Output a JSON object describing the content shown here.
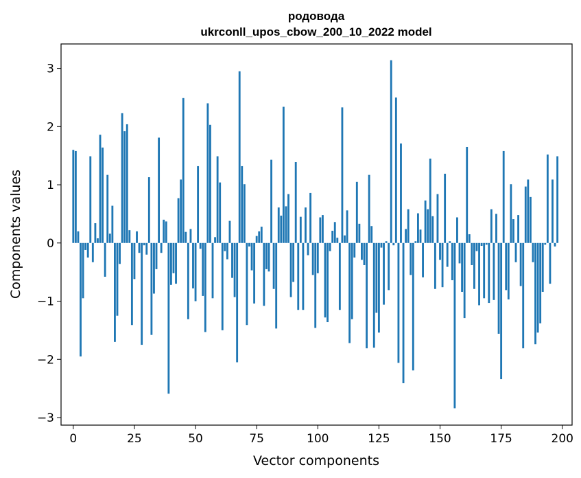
{
  "chart_data": {
    "type": "bar",
    "title_line1": "родовода",
    "title_line2": "ukrconll_upos_cbow_200_10_2022 model",
    "xlabel": "Vector components",
    "ylabel": "Components values",
    "xlim": [
      -5,
      204
    ],
    "ylim": [
      -3.13,
      3.42
    ],
    "x_ticks": [
      0,
      25,
      50,
      75,
      100,
      125,
      150,
      175,
      200
    ],
    "y_ticks": [
      -3,
      -2,
      -1,
      0,
      1,
      2,
      3
    ],
    "y_tick_labels": [
      "−3",
      "−2",
      "−1",
      "0",
      "1",
      "2",
      "3"
    ],
    "bar_color": "#1f77b4",
    "grid": false,
    "values": [
      1.6,
      1.58,
      0.2,
      -1.95,
      -0.95,
      -0.12,
      -0.25,
      1.49,
      -0.33,
      0.34,
      0.08,
      1.86,
      1.64,
      -0.58,
      1.17,
      0.16,
      0.64,
      -1.7,
      -1.25,
      -0.36,
      2.23,
      1.92,
      2.04,
      0.22,
      -1.41,
      -0.62,
      0.2,
      -0.17,
      -1.75,
      -0.04,
      -0.2,
      1.13,
      -1.58,
      -0.87,
      -0.45,
      1.81,
      -0.17,
      0.4,
      0.37,
      -2.59,
      -0.72,
      -0.52,
      -0.7,
      0.77,
      1.09,
      2.49,
      0.19,
      -1.31,
      0.24,
      -0.78,
      -1.0,
      1.32,
      -0.1,
      -0.91,
      -1.53,
      2.4,
      2.03,
      -0.95,
      0.1,
      1.49,
      1.04,
      -1.5,
      -0.14,
      -0.28,
      0.38,
      -0.6,
      -0.93,
      -2.05,
      2.95,
      1.32,
      1.01,
      -1.41,
      -0.06,
      -0.47,
      -1.04,
      0.12,
      0.2,
      0.28,
      -1.08,
      -0.45,
      -0.49,
      1.43,
      -0.79,
      -1.47,
      0.61,
      0.47,
      2.34,
      0.63,
      0.84,
      -0.93,
      -0.67,
      1.39,
      -1.15,
      0.45,
      -1.15,
      0.61,
      -0.21,
      0.86,
      -0.55,
      -1.46,
      -0.52,
      0.44,
      0.48,
      -1.28,
      -1.36,
      -0.14,
      0.21,
      0.36,
      0.09,
      -1.15,
      2.33,
      0.13,
      0.56,
      -1.72,
      -1.31,
      -0.25,
      1.05,
      0.33,
      -0.29,
      -0.38,
      -1.81,
      1.17,
      0.29,
      -1.8,
      -1.2,
      -1.54,
      -0.08,
      -1.06,
      0.03,
      -0.81,
      3.14,
      -0.04,
      2.5,
      -2.06,
      1.71,
      -2.41,
      0.24,
      0.58,
      -0.55,
      -2.19,
      0.03,
      0.51,
      0.23,
      -0.59,
      0.73,
      0.58,
      1.45,
      0.46,
      -0.79,
      0.84,
      -0.29,
      -0.76,
      1.19,
      -0.41,
      0.03,
      -0.64,
      -2.84,
      0.44,
      -0.35,
      -0.84,
      -1.29,
      1.65,
      0.15,
      -0.38,
      -0.79,
      -0.14,
      -1.07,
      -0.05,
      -0.95,
      -0.03,
      -1.03,
      0.58,
      -0.98,
      0.5,
      -1.56,
      -2.34,
      1.58,
      -0.81,
      -0.97,
      1.01,
      0.41,
      -0.33,
      0.48,
      -0.74,
      -1.81,
      0.97,
      1.09,
      0.79,
      -0.33,
      -1.74,
      -1.54,
      -1.38,
      -0.84,
      -0.03,
      1.52,
      -0.7,
      1.09,
      -0.06,
      1.49
    ]
  }
}
